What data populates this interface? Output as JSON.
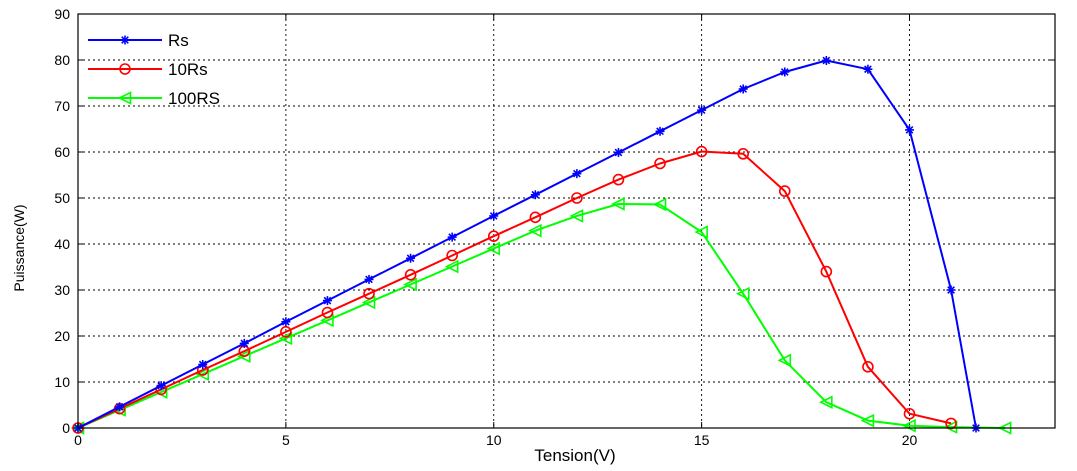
{
  "chart_data": {
    "type": "line",
    "title": "",
    "xlabel": "Tension(V)",
    "ylabel": "Puissance(W)",
    "xlim": [
      0,
      23.5
    ],
    "ylim": [
      0,
      90
    ],
    "xticks": [
      0,
      5,
      10,
      15,
      20
    ],
    "yticks": [
      0,
      10,
      20,
      30,
      40,
      50,
      60,
      70,
      80,
      90
    ],
    "grid": true,
    "legend_position": "top-left",
    "series": [
      {
        "name": "Rs",
        "color": "#0000ff",
        "marker": "star",
        "x": [
          0,
          1,
          2,
          3,
          4,
          5,
          6,
          7,
          8,
          9,
          10,
          11,
          12,
          13,
          14,
          15,
          16,
          17,
          18,
          19,
          20,
          21,
          21.6
        ],
        "y": [
          0,
          4.6,
          9.2,
          13.8,
          18.4,
          23.1,
          27.7,
          32.3,
          36.9,
          41.5,
          46.1,
          50.7,
          55.3,
          59.9,
          64.5,
          69.1,
          73.7,
          77.4,
          79.9,
          78.0,
          64.8,
          30.0,
          0
        ]
      },
      {
        "name": "10Rs",
        "color": "#ff0000",
        "marker": "circle",
        "x": [
          0,
          1,
          2,
          3,
          4,
          5,
          6,
          7,
          8,
          9,
          10,
          11,
          12,
          13,
          14,
          15,
          16,
          17,
          18,
          19,
          20,
          21
        ],
        "y": [
          0,
          4.2,
          8.4,
          12.6,
          16.7,
          20.9,
          25.1,
          29.2,
          33.3,
          37.5,
          41.7,
          45.8,
          50.0,
          54.0,
          57.5,
          60.1,
          59.6,
          51.5,
          34.0,
          13.3,
          3.1,
          1.0
        ]
      },
      {
        "name": "100RS",
        "color": "#00ff00",
        "marker": "triangle-left",
        "x": [
          0,
          1,
          2,
          3,
          4,
          5,
          6,
          7,
          8,
          9,
          10,
          11,
          12,
          13,
          14,
          15,
          16,
          17,
          18,
          19,
          20,
          21,
          22.3
        ],
        "y": [
          0,
          3.9,
          7.8,
          11.7,
          15.6,
          19.5,
          23.4,
          27.3,
          31.2,
          35.1,
          39.0,
          42.9,
          46.1,
          48.7,
          48.6,
          42.6,
          29.2,
          14.7,
          5.6,
          1.6,
          0.5,
          0.2,
          0
        ]
      }
    ]
  }
}
